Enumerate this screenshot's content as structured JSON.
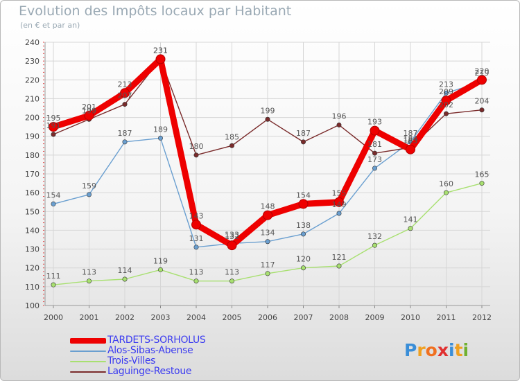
{
  "title": "Evolution des Impôts locaux par Habitant",
  "subtitle": "(en € et par an)",
  "logo": {
    "text": "Proxiti",
    "letter_colors": [
      "#3a8ed8",
      "#f0a020",
      "#f07020",
      "#e03030",
      "#3a8ed8",
      "#f0a020",
      "#70b030"
    ]
  },
  "chart_data": {
    "type": "line",
    "title": "Evolution des Impôts locaux par Habitant",
    "subtitle": "(en € et par an)",
    "x": [
      "2000",
      "2001",
      "2002",
      "2003",
      "2004",
      "2005",
      "2006",
      "2007",
      "2008",
      "2009",
      "2010",
      "2011",
      "2012"
    ],
    "ylim": [
      100,
      240
    ],
    "yticks": [
      100,
      110,
      120,
      130,
      140,
      150,
      160,
      170,
      180,
      190,
      200,
      210,
      220,
      230,
      240
    ],
    "grid": true,
    "legend_position": "bottom-left",
    "series": [
      {
        "name": "TARDETS-SORHOLUS",
        "color": "#ee0000",
        "highlight": true,
        "values": [
          195,
          201,
          213,
          231,
          143,
          132,
          148,
          154,
          155,
          193,
          183,
          209,
          220
        ],
        "labels": [
          "195",
          "201",
          "213",
          "231",
          "143",
          "132",
          "148",
          "154",
          "155",
          "193",
          "183",
          "209",
          "220"
        ]
      },
      {
        "name": "Alos-Sibas-Abense",
        "color": "#6a9fd0",
        "highlight": false,
        "values": [
          154,
          159,
          187,
          189,
          131,
          133,
          134,
          138,
          149,
          173,
          187,
          213,
          219
        ],
        "labels": [
          "154",
          "159",
          "187",
          "189",
          "131",
          "133",
          "134",
          "138",
          "149",
          "173",
          "187",
          "213",
          "219"
        ]
      },
      {
        "name": "Trois-Villes",
        "color": "#a8e070",
        "highlight": false,
        "values": [
          111,
          113,
          114,
          119,
          113,
          113,
          117,
          120,
          121,
          132,
          141,
          160,
          165
        ],
        "labels": [
          "111",
          "113",
          "114",
          "119",
          "113",
          "113",
          "117",
          "120",
          "121",
          "132",
          "141",
          "160",
          "165"
        ]
      },
      {
        "name": "Laguinge-Restoue",
        "color": "#7a2b2b",
        "highlight": false,
        "values": [
          191,
          199,
          207,
          231,
          180,
          185,
          199,
          187,
          196,
          181,
          184,
          202,
          204
        ],
        "labels": [
          "191",
          "199",
          "207",
          "231",
          "180",
          "185",
          "199",
          "187",
          "196",
          "181",
          "184",
          "202",
          "204"
        ]
      }
    ]
  }
}
